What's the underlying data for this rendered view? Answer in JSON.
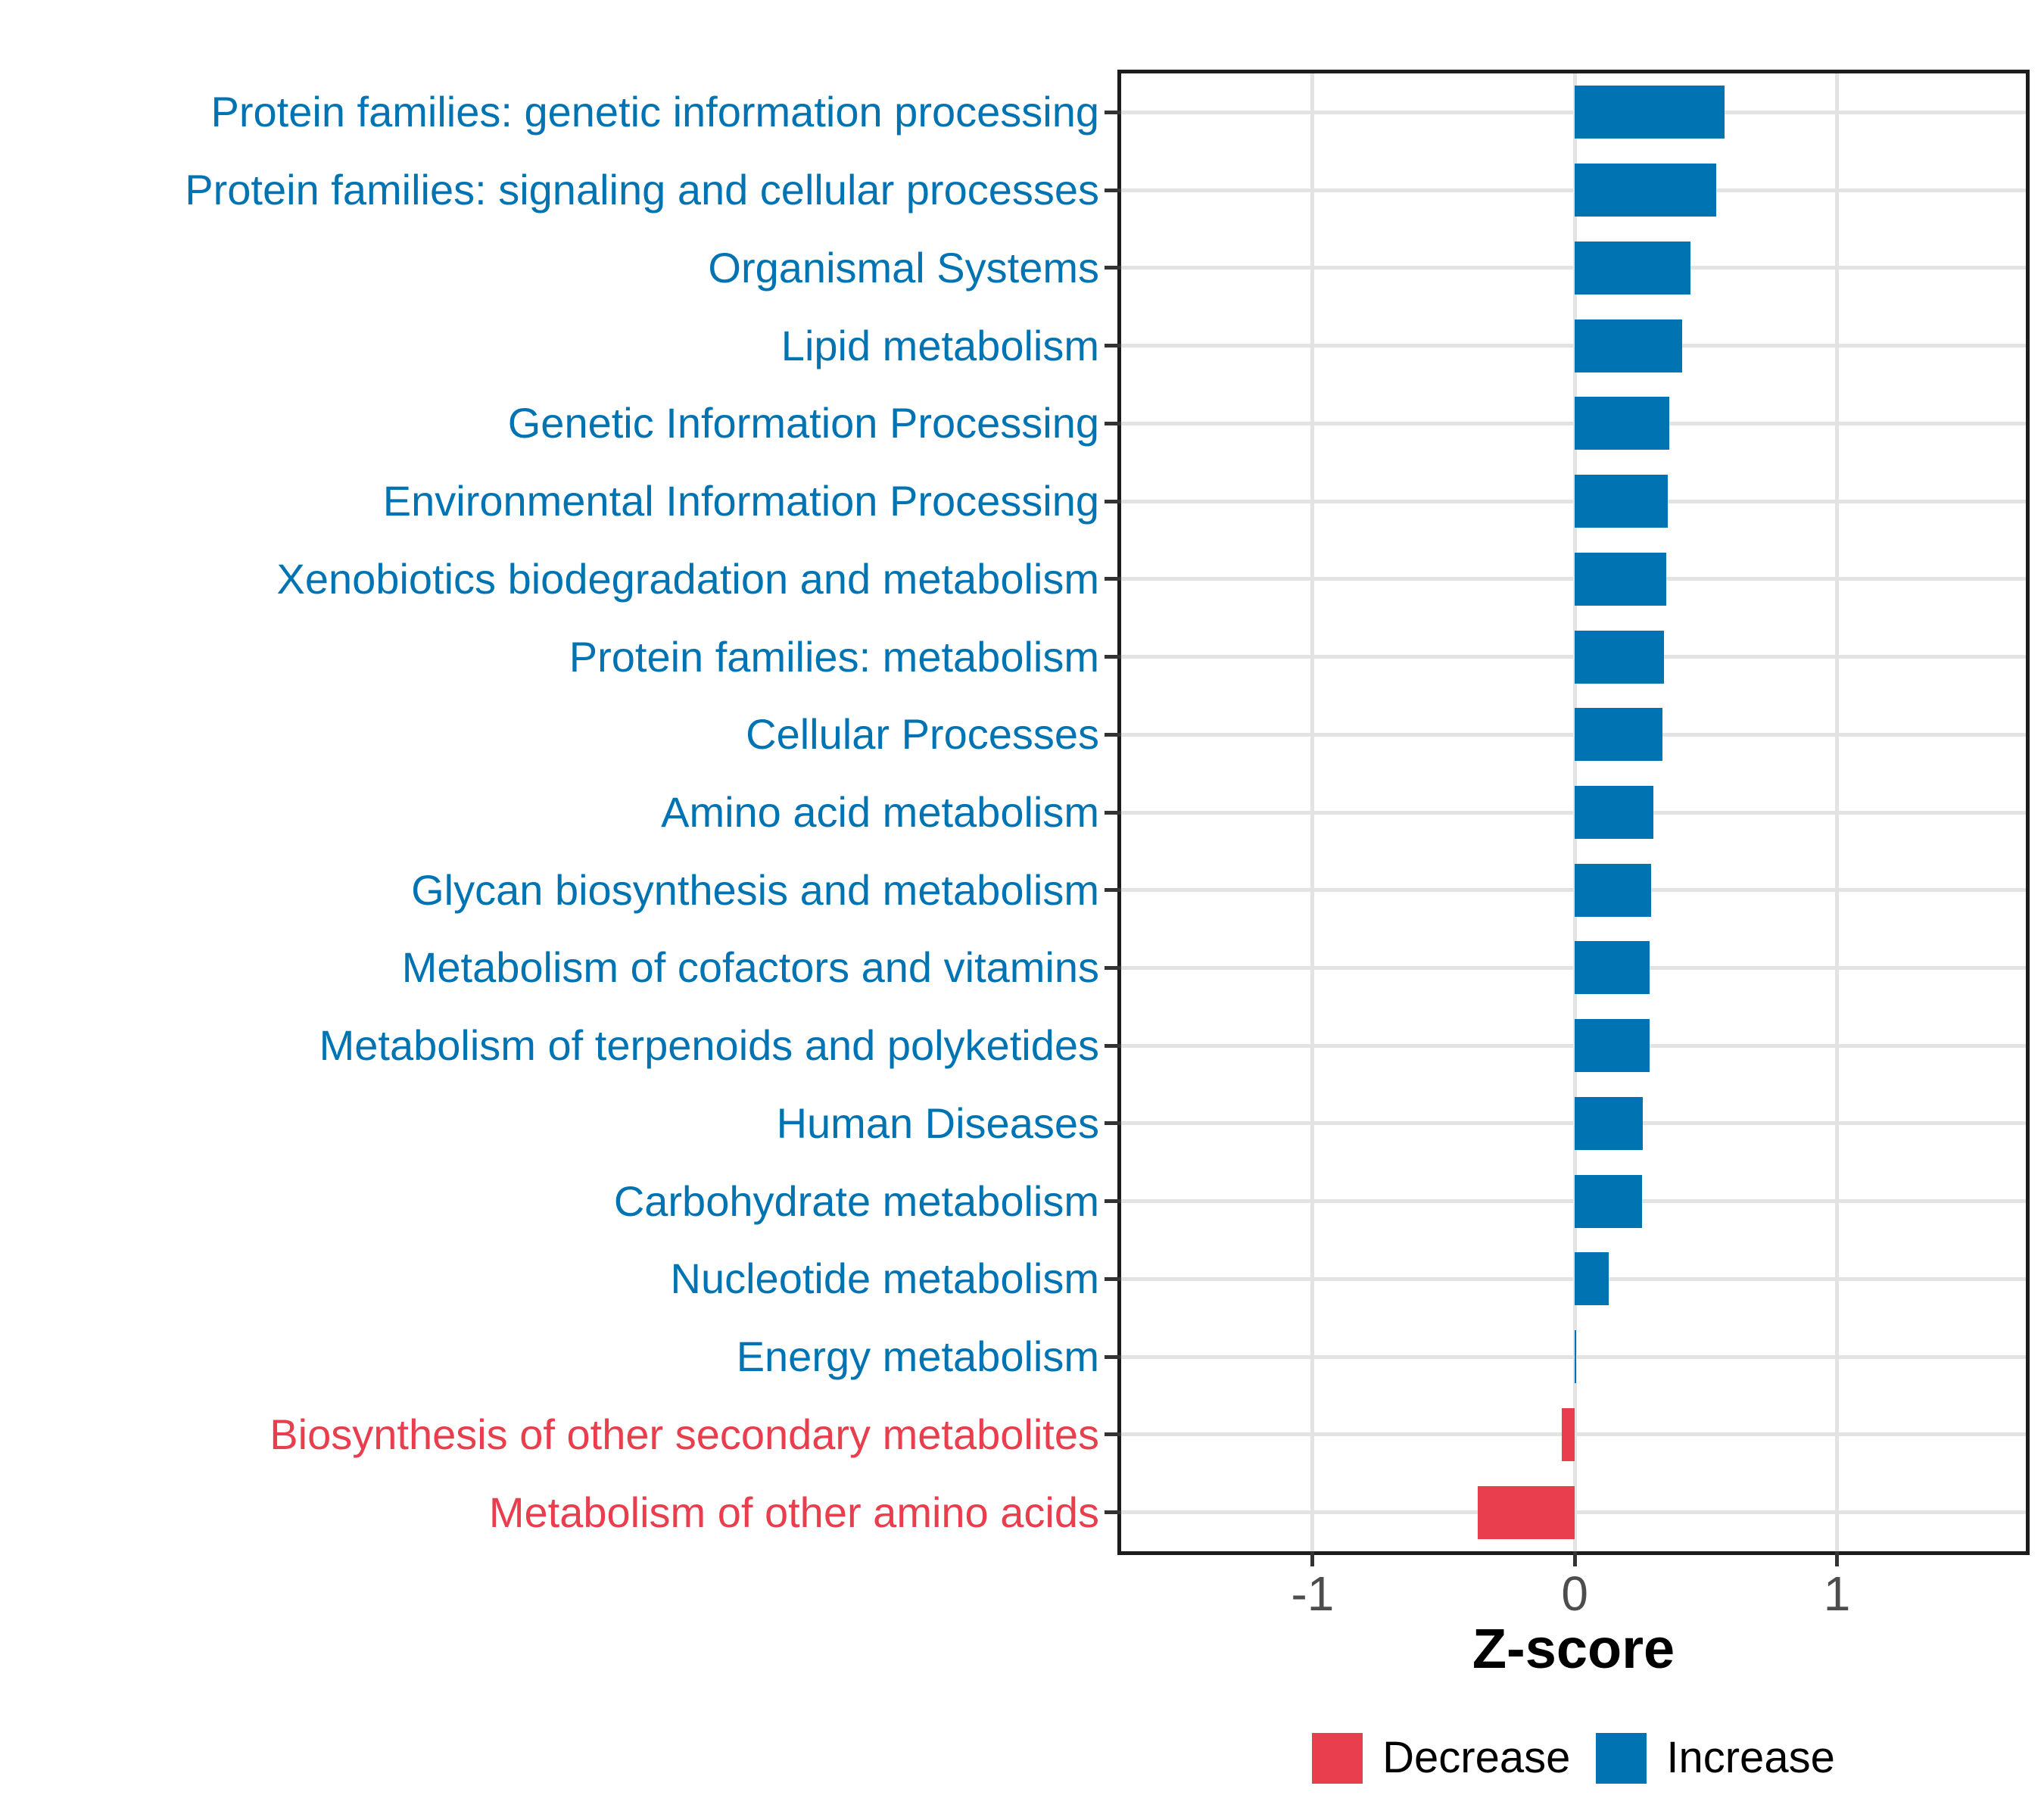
{
  "chart_data": {
    "type": "bar",
    "orientation": "horizontal",
    "title": "",
    "xlabel": "Z-score",
    "xlim": [
      -1.73,
      1.72
    ],
    "x_ticks": [
      {
        "value": -1,
        "label": "-1"
      },
      {
        "value": 0,
        "label": "0"
      },
      {
        "value": 1,
        "label": "1"
      }
    ],
    "grid": "major-only",
    "categories": [
      "Protein families: genetic information processing",
      "Protein families: signaling and cellular processes",
      "Organismal Systems",
      "Lipid metabolism",
      "Genetic Information Processing",
      "Environmental Information Processing",
      "Xenobiotics biodegradation and metabolism",
      "Protein families: metabolism",
      "Cellular Processes",
      "Amino acid metabolism",
      "Glycan biosynthesis and metabolism",
      "Metabolism of cofactors and vitamins",
      "Metabolism of terpenoids and polyketides",
      "Human Diseases",
      "Carbohydrate metabolism",
      "Nucleotide metabolism",
      "Energy metabolism",
      "Biosynthesis of other secondary metabolites",
      "Metabolism of other amino acids"
    ],
    "values": [
      0.57,
      0.54,
      0.44,
      0.41,
      0.36,
      0.355,
      0.35,
      0.34,
      0.335,
      0.3,
      0.29,
      0.285,
      0.285,
      0.26,
      0.255,
      0.13,
      0.005,
      -0.05,
      -0.37
    ],
    "palette": {
      "increase": "#0073B2",
      "decrease": "#E83E4D",
      "gridline": "#e3e3e3",
      "axis_text": "#4d4d4d"
    },
    "legend": {
      "position": "bottom",
      "items": [
        {
          "label": "Decrease",
          "key": "decrease"
        },
        {
          "label": "Increase",
          "key": "increase"
        }
      ]
    }
  }
}
